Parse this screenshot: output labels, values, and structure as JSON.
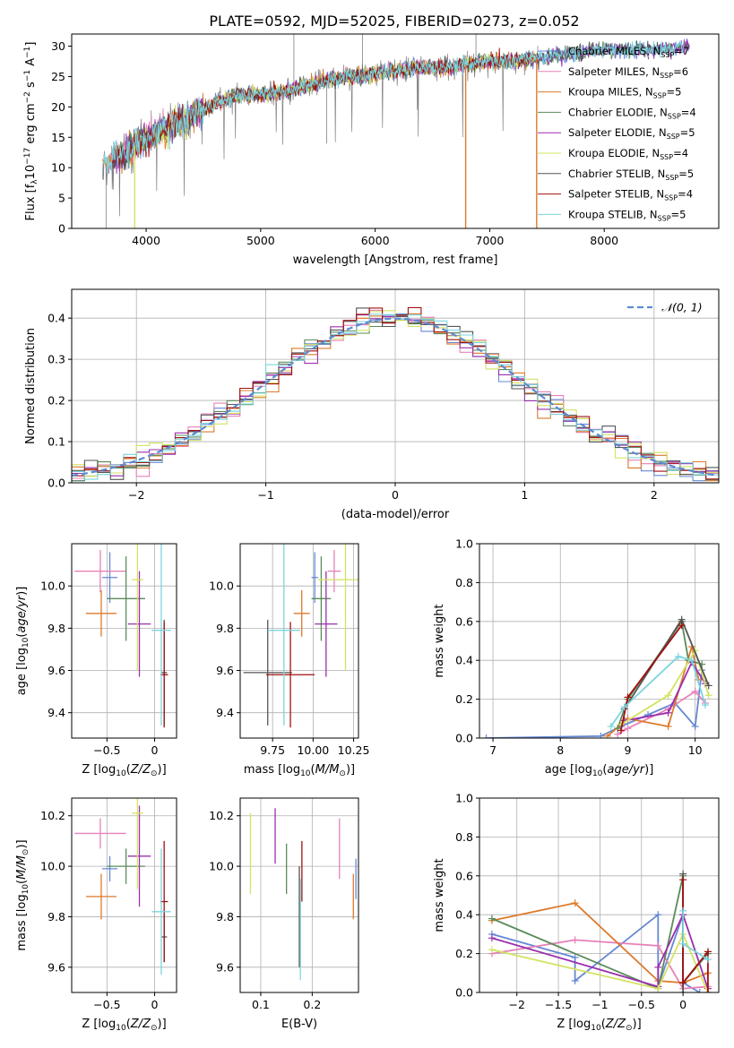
{
  "figure_title": "PLATE=0592, MJD=52025, FIBERID=0273, z=0.052",
  "colors": [
    "#6688d4",
    "#e681b8",
    "#dc7a2b",
    "#5a8b5a",
    "#9b2fae",
    "#d4e262",
    "#555555",
    "#a01010",
    "#7bd5dd"
  ],
  "chart_data": [
    {
      "id": "spectrum",
      "type": "line",
      "title": "PLATE=0592, MJD=52025, FIBERID=0273, z=0.052",
      "xlabel": "wavelength [Angstrom, rest frame]",
      "ylabel": "Flux [f_λ10^-17 erg cm^-2 s^-1 A^-1]",
      "xlim": [
        3350,
        9000
      ],
      "ylim": [
        0,
        32
      ],
      "xticks": [
        4000,
        5000,
        6000,
        7000,
        8000
      ],
      "yticks": [
        0,
        5,
        10,
        15,
        20,
        25,
        30
      ],
      "legend_position": "upper right",
      "continuum_points": {
        "x": [
          3620,
          3700,
          3900,
          4000,
          4200,
          4400,
          4600,
          4800,
          5000,
          5200,
          5400,
          5600,
          5800,
          6000,
          6200,
          6400,
          6600,
          6800,
          7000,
          7200,
          7400,
          7600,
          7800,
          8000,
          8200,
          8400,
          8600,
          8700
        ],
        "y": [
          10.5,
          11,
          13.5,
          15,
          16.5,
          18.5,
          20.5,
          22,
          22,
          22.5,
          23.5,
          24.5,
          25,
          25.5,
          26,
          26.5,
          26.5,
          27,
          27.5,
          27.5,
          28,
          28.5,
          29,
          29.5,
          29.5,
          29.5,
          29.5,
          30
        ]
      },
      "series": [
        {
          "name": "Chabrier MILES, N_SSP=7",
          "color": "#6688d4"
        },
        {
          "name": "Salpeter MILES, N_SSP=6",
          "color": "#e681b8"
        },
        {
          "name": "Kroupa MILES, N_SSP=5",
          "color": "#dc7a2b"
        },
        {
          "name": "Chabrier ELODIE, N_SSP=4",
          "color": "#5a8b5a"
        },
        {
          "name": "Salpeter ELODIE, N_SSP=5",
          "color": "#9b2fae"
        },
        {
          "name": "Kroupa ELODIE, N_SSP=4",
          "color": "#d4e262"
        },
        {
          "name": "Chabrier STELIB, N_SSP=5",
          "color": "#555555"
        },
        {
          "name": "Salpeter STELIB, N_SSP=4",
          "color": "#a01010"
        },
        {
          "name": "Kroupa STELIB, N_SSP=5",
          "color": "#7bd5dd"
        }
      ]
    },
    {
      "id": "residuals",
      "type": "line",
      "xlabel": "(data-model)/error",
      "ylabel": "Normed distribution",
      "xlim": [
        -2.5,
        2.5
      ],
      "ylim": [
        0,
        0.47
      ],
      "xticks": [
        -2,
        -1,
        0,
        1,
        2
      ],
      "yticks": [
        0.0,
        0.1,
        0.2,
        0.3,
        0.4
      ],
      "grid": true,
      "legend_position": "upper right",
      "reference_curve": {
        "name": "𝒩(0, 1)",
        "color": "#5b8bd0"
      },
      "bin_width": 0.1
    },
    {
      "id": "age_vs_Z",
      "type": "scatter",
      "xlabel": "Z [log10(Z/Z⊙)]",
      "ylabel": "age  [log10(age/yr)]",
      "xlim": [
        -0.87,
        0.23
      ],
      "ylim": [
        9.28,
        10.2
      ],
      "xticks": [
        -0.5,
        0.0
      ],
      "yticks": [
        9.4,
        9.6,
        9.8,
        10.0
      ],
      "grid": true,
      "points": [
        {
          "series": 0,
          "x": -0.47,
          "y": 10.04,
          "xerr": 0.08,
          "yerr": 0.12
        },
        {
          "series": 1,
          "x": -0.57,
          "y": 10.07,
          "xerr": 0.27,
          "yerr": 0.1
        },
        {
          "series": 2,
          "x": -0.56,
          "y": 9.87,
          "xerr": 0.16,
          "yerr": 0.11
        },
        {
          "series": 3,
          "x": -0.3,
          "y": 9.94,
          "xerr": 0.2,
          "yerr": 0.2
        },
        {
          "series": 4,
          "x": -0.16,
          "y": 9.82,
          "xerr": 0.12,
          "yerr": 0.25
        },
        {
          "series": 5,
          "x": -0.18,
          "y": 10.03,
          "xerr": 0.06,
          "yerr": 0.43
        },
        {
          "series": 6,
          "x": 0.1,
          "y": 9.59,
          "xerr": 0.03,
          "yerr": 0.25
        },
        {
          "series": 7,
          "x": 0.1,
          "y": 9.58,
          "xerr": 0.04,
          "yerr": 0.25
        },
        {
          "series": 8,
          "x": 0.07,
          "y": 9.79,
          "xerr": 0.1,
          "yerr": 0.45
        }
      ]
    },
    {
      "id": "age_vs_mass",
      "type": "scatter",
      "xlabel": "mass [log10(M/M⊙)]",
      "ylabel": "",
      "xlim": [
        9.55,
        10.28
      ],
      "ylim": [
        9.28,
        10.2
      ],
      "xticks": [
        9.75,
        10.0,
        10.25
      ],
      "xtick_labels": [
        "9.75",
        "10.00",
        "10.25"
      ],
      "yticks": [
        9.4,
        9.6,
        9.8,
        10.0
      ],
      "grid": true,
      "points": [
        {
          "series": 0,
          "x": 10.01,
          "y": 10.04,
          "xerr": 0.02,
          "yerr": 0.12
        },
        {
          "series": 1,
          "x": 10.13,
          "y": 10.07,
          "xerr": 0.04,
          "yerr": 0.1
        },
        {
          "series": 2,
          "x": 9.93,
          "y": 9.87,
          "xerr": 0.05,
          "yerr": 0.11
        },
        {
          "series": 3,
          "x": 10.05,
          "y": 9.94,
          "xerr": 0.06,
          "yerr": 0.2
        },
        {
          "series": 4,
          "x": 10.08,
          "y": 9.82,
          "xerr": 0.07,
          "yerr": 0.25
        },
        {
          "series": 5,
          "x": 10.2,
          "y": 10.03,
          "xerr": 0.17,
          "yerr": 0.43
        },
        {
          "series": 6,
          "x": 9.72,
          "y": 9.59,
          "xerr": 0.15,
          "yerr": 0.25
        },
        {
          "series": 7,
          "x": 9.86,
          "y": 9.58,
          "xerr": 0.15,
          "yerr": 0.25
        },
        {
          "series": 8,
          "x": 9.82,
          "y": 9.79,
          "xerr": 0.1,
          "yerr": 0.45
        }
      ]
    },
    {
      "id": "weight_vs_age",
      "type": "line",
      "xlabel": "age  [log10(age/yr)]",
      "ylabel": "mass weight",
      "xlim": [
        6.8,
        10.35
      ],
      "ylim": [
        0,
        1
      ],
      "xticks": [
        7,
        8,
        9,
        10
      ],
      "yticks": [
        0.0,
        0.2,
        0.4,
        0.6,
        0.8,
        1.0
      ],
      "grid": true,
      "series": [
        {
          "index": 0,
          "x": [
            6.9,
            8.6,
            8.9,
            9.3,
            9.7,
            10.0,
            10.1
          ],
          "y": [
            0.0,
            0.01,
            0.06,
            0.12,
            0.18,
            0.06,
            0.35
          ]
        },
        {
          "index": 1,
          "x": [
            8.85,
            9.0,
            9.6,
            10.0,
            10.15
          ],
          "y": [
            0.02,
            0.05,
            0.15,
            0.24,
            0.18
          ]
        },
        {
          "index": 2,
          "x": [
            8.7,
            9.0,
            9.6,
            9.95,
            10.05
          ],
          "y": [
            0.01,
            0.1,
            0.06,
            0.47,
            0.3
          ]
        },
        {
          "index": 3,
          "x": [
            8.85,
            9.0,
            9.8,
            9.9,
            10.1
          ],
          "y": [
            0.05,
            0.2,
            0.6,
            0.4,
            0.38
          ]
        },
        {
          "index": 4,
          "x": [
            8.95,
            9.6,
            9.95,
            10.15
          ],
          "y": [
            0.09,
            0.13,
            0.39,
            0.28
          ]
        },
        {
          "index": 5,
          "x": [
            8.9,
            9.6,
            10.0,
            10.2
          ],
          "y": [
            0.07,
            0.22,
            0.45,
            0.22
          ]
        },
        {
          "index": 6,
          "x": [
            8.95,
            9.8,
            10.2
          ],
          "y": [
            0.15,
            0.61,
            0.27
          ]
        },
        {
          "index": 7,
          "x": [
            8.9,
            9.0,
            9.8
          ],
          "y": [
            0.04,
            0.21,
            0.58
          ]
        },
        {
          "index": 8,
          "x": [
            8.75,
            8.95,
            9.75,
            9.95,
            10.15
          ],
          "y": [
            0.06,
            0.16,
            0.42,
            0.4,
            0.17
          ]
        }
      ]
    },
    {
      "id": "mass_vs_Z",
      "type": "scatter",
      "xlabel": "Z [log10(Z/Z⊙)]",
      "ylabel": "mass [log10(M/M⊙)]",
      "xlim": [
        -0.87,
        0.23
      ],
      "ylim": [
        9.5,
        10.27
      ],
      "xticks": [
        -0.5,
        0.0
      ],
      "yticks": [
        9.6,
        9.8,
        10.0,
        10.2
      ],
      "grid": true,
      "points": [
        {
          "series": 0,
          "x": -0.47,
          "y": 9.99,
          "xerr": 0.08,
          "yerr": 0.05
        },
        {
          "series": 1,
          "x": -0.57,
          "y": 10.13,
          "xerr": 0.27,
          "yerr": 0.06
        },
        {
          "series": 2,
          "x": -0.56,
          "y": 9.88,
          "xerr": 0.16,
          "yerr": 0.09
        },
        {
          "series": 3,
          "x": -0.3,
          "y": 10.0,
          "xerr": 0.2,
          "yerr": 0.07
        },
        {
          "series": 4,
          "x": -0.16,
          "y": 10.04,
          "xerr": 0.12,
          "yerr": 0.2
        },
        {
          "series": 5,
          "x": -0.18,
          "y": 10.21,
          "xerr": 0.06,
          "yerr": 0.3
        },
        {
          "series": 6,
          "x": 0.1,
          "y": 9.72,
          "xerr": 0.03,
          "yerr": 0.1
        },
        {
          "series": 7,
          "x": 0.1,
          "y": 9.86,
          "xerr": 0.04,
          "yerr": 0.24
        },
        {
          "series": 8,
          "x": 0.07,
          "y": 9.82,
          "xerr": 0.1,
          "yerr": 0.25
        }
      ]
    },
    {
      "id": "mass_vs_ebv",
      "type": "scatter",
      "xlabel": "E(B-V)",
      "ylabel": "",
      "xlim": [
        0.06,
        0.29
      ],
      "ylim": [
        9.5,
        10.27
      ],
      "xticks": [
        0.1,
        0.2
      ],
      "yticks": [
        9.6,
        9.8,
        10.0,
        10.2
      ],
      "grid": true,
      "points": [
        {
          "series": 0,
          "x": 0.285,
          "y": 9.95,
          "xerr": 0.0,
          "yerr": 0.08
        },
        {
          "series": 1,
          "x": 0.253,
          "y": 10.07,
          "xerr": 0.0,
          "yerr": 0.12
        },
        {
          "series": 2,
          "x": 0.28,
          "y": 9.88,
          "xerr": 0.0,
          "yerr": 0.09
        },
        {
          "series": 3,
          "x": 0.15,
          "y": 9.99,
          "xerr": 0.0,
          "yerr": 0.1
        },
        {
          "series": 4,
          "x": 0.128,
          "y": 10.12,
          "xerr": 0.0,
          "yerr": 0.11
        },
        {
          "series": 5,
          "x": 0.08,
          "y": 10.05,
          "xerr": 0.0,
          "yerr": 0.16
        },
        {
          "series": 6,
          "x": 0.175,
          "y": 9.8,
          "xerr": 0.0,
          "yerr": 0.2
        },
        {
          "series": 7,
          "x": 0.18,
          "y": 9.98,
          "xerr": 0.0,
          "yerr": 0.12
        },
        {
          "series": 8,
          "x": 0.177,
          "y": 9.75,
          "xerr": 0.0,
          "yerr": 0.2
        }
      ]
    },
    {
      "id": "weight_vs_Z",
      "type": "line",
      "xlabel": "Z [log10(Z/Z⊙)]",
      "ylabel": "mass weight",
      "xlim": [
        -2.45,
        0.43
      ],
      "ylim": [
        0,
        1
      ],
      "xticks": [
        -2.0,
        -1.5,
        -1.0,
        -0.5,
        0.0
      ],
      "yticks": [
        0.0,
        0.2,
        0.4,
        0.6,
        0.8,
        1.0
      ],
      "grid": true,
      "series": [
        {
          "index": 0,
          "x": [
            -2.3,
            -1.3,
            -1.3,
            -0.3,
            -0.3,
            0.0,
            0.0,
            0.2
          ],
          "y": [
            0.3,
            0.18,
            0.06,
            0.4,
            0.03,
            0.4,
            0.05,
            0.0
          ]
        },
        {
          "index": 1,
          "x": [
            -2.3,
            -1.3,
            -0.3,
            0.0,
            0.3
          ],
          "y": [
            0.2,
            0.27,
            0.24,
            0.02,
            0.03
          ]
        },
        {
          "index": 2,
          "x": [
            -2.3,
            -1.3,
            -0.3,
            0.0,
            0.3
          ],
          "y": [
            0.37,
            0.46,
            0.06,
            0.05,
            0.1
          ]
        },
        {
          "index": 3,
          "x": [
            -2.3,
            -0.3,
            0.0,
            0.0,
            0.3
          ],
          "y": [
            0.38,
            0.02,
            0.6,
            0.05,
            0.2
          ]
        },
        {
          "index": 4,
          "x": [
            -2.3,
            -0.3,
            -0.3,
            0.0,
            0.3
          ],
          "y": [
            0.28,
            0.03,
            0.13,
            0.4,
            0.02
          ]
        },
        {
          "index": 5,
          "x": [
            -2.3,
            -0.3,
            0.0,
            0.3
          ],
          "y": [
            0.22,
            0.02,
            0.3,
            0.0
          ]
        },
        {
          "index": 6,
          "x": [
            0.0,
            0.0
          ],
          "y": [
            0.61,
            0.0
          ]
        },
        {
          "index": 7,
          "x": [
            0.0,
            0.0,
            0.3,
            0.3
          ],
          "y": [
            0.58,
            0.05,
            0.21,
            0.0
          ]
        },
        {
          "index": 8,
          "x": [
            0.0,
            0.0,
            0.3
          ],
          "y": [
            0.42,
            0.25,
            0.17
          ]
        }
      ]
    }
  ]
}
